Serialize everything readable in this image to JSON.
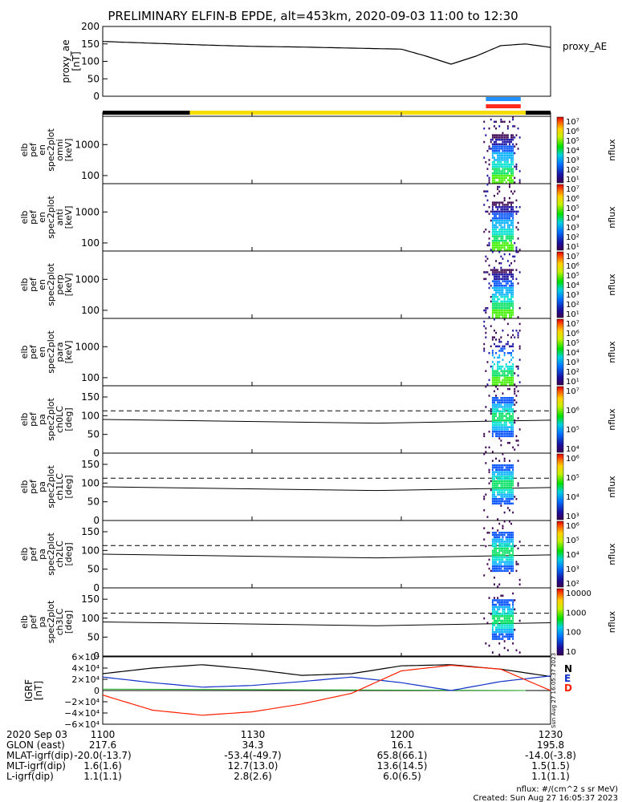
{
  "title": "PRELIMINARY ELFIN-B EPDE, alt=453km, 2020-09-03 11:00 to 12:30",
  "colors": {
    "sun_bar": "#f5dd00",
    "shadow_bar": "#000000",
    "science_blue": "#1e90ff",
    "science_red": "#ff2a1a",
    "line_black": "#000000",
    "grf_n": "#000000",
    "grf_e": "#1030c8",
    "grf_d": "#ff2000",
    "grf_green": "#22b022"
  },
  "panels": {
    "proxy": {
      "ylabel": [
        "proxy_ae",
        "[nT]"
      ],
      "ticks": [
        "200",
        "150",
        "100",
        "50",
        "0"
      ],
      "legend": "proxy_AE"
    },
    "omni": {
      "ylabel": [
        "elb",
        "pef",
        "en",
        "spec2plot",
        "omni",
        "[keV]"
      ],
      "ticks": [
        "1000",
        "100"
      ]
    },
    "anti": {
      "ylabel": [
        "elb",
        "pef",
        "en",
        "spec2plot",
        "anti",
        "[keV]"
      ],
      "ticks": [
        "1000",
        "100"
      ]
    },
    "perp": {
      "ylabel": [
        "elb",
        "pef",
        "en",
        "spec2plot",
        "perp",
        "[keV]"
      ],
      "ticks": [
        "1000",
        "100"
      ]
    },
    "para": {
      "ylabel": [
        "elb",
        "pef",
        "en",
        "spec2plot",
        "para",
        "[keV]"
      ],
      "ticks": [
        "1000",
        "100"
      ]
    },
    "ch0": {
      "ylabel": [
        "elb",
        "pef",
        "pa",
        "spec2plot",
        "ch0LC",
        "[deg]"
      ],
      "ticks": [
        "150",
        "100",
        "50",
        "0"
      ]
    },
    "ch1": {
      "ylabel": [
        "elb",
        "pef",
        "pa",
        "spec2plot",
        "ch1LC",
        "[deg]"
      ],
      "ticks": [
        "150",
        "100",
        "50",
        "0"
      ]
    },
    "ch2": {
      "ylabel": [
        "elb",
        "pef",
        "pa",
        "spec2plot",
        "ch2LC",
        "[deg]"
      ],
      "ticks": [
        "150",
        "100",
        "50",
        "0"
      ]
    },
    "ch3": {
      "ylabel": [
        "elb",
        "pef",
        "pa",
        "spec2plot",
        "ch3LC",
        "[deg]"
      ],
      "ticks": [
        "150",
        "100",
        "50",
        "0"
      ]
    },
    "igrf": {
      "ylabel": [
        "IGRF",
        "[nT]"
      ],
      "ticks": [
        "6×10⁴",
        "4×10⁴",
        "2×10⁴",
        "0",
        "−2×10⁴",
        "−4×10⁴",
        "−6×10⁴"
      ],
      "labels": [
        "N",
        "E",
        "D"
      ],
      "side_stamp": "Sun Aug 27 16:05:37 2023"
    }
  },
  "colorbars": {
    "unit": "nflux",
    "omni": [
      "10⁷",
      "10⁶",
      "10⁵",
      "10⁴",
      "10³",
      "10²",
      "10¹"
    ],
    "anti": [
      "10⁷",
      "10⁶",
      "10⁵",
      "10⁴",
      "10³",
      "10²",
      "10¹"
    ],
    "perp": [
      "10⁷",
      "10⁶",
      "10⁵",
      "10⁴",
      "10³",
      "10²",
      "10¹"
    ],
    "para": [
      "10⁷",
      "10⁶",
      "10⁵",
      "10⁴",
      "10³",
      "10²",
      "10¹"
    ],
    "ch0": [
      "10⁷",
      "10⁶",
      "10⁵",
      "10⁴"
    ],
    "ch1": [
      "10⁶",
      "10⁵",
      "10⁴",
      "10³"
    ],
    "ch2": [
      "10⁶",
      "10⁵",
      "10⁴",
      "10³",
      "10²"
    ],
    "ch3": [
      "10000",
      "1000",
      "100",
      "10"
    ]
  },
  "orbit_table": {
    "row_labels": [
      "2020 Sep 03",
      "GLON (east)",
      "MLAT-igrf(dip)",
      "MLT-igrf(dip)",
      "L-igrf(dip)"
    ],
    "columns": [
      [
        "1100",
        "217.6",
        "-20.0(-13.7)",
        "1.6(1.6)",
        "1.1(1.1)"
      ],
      [
        "1130",
        "34.3",
        "-53.4(-49.7)",
        "12.7(13.0)",
        "2.8(2.6)"
      ],
      [
        "1200",
        "16.1",
        "65.8(66.1)",
        "13.6(14.5)",
        "6.0(6.5)"
      ],
      [
        "1230",
        "195.8",
        "-14.0(-3.8)",
        "1.5(1.5)",
        "1.1(1.1)"
      ]
    ]
  },
  "footer": {
    "units": "nflux: #/(cm^2 s sr MeV)",
    "created": "Created: Sun Aug 27 16:05:37 2023"
  },
  "chart_data": {
    "type": "line",
    "time_range": [
      "2020-09-03 11:00",
      "2020-09-03 12:30"
    ],
    "x_ticks": [
      "1100",
      "1130",
      "1200",
      "1230"
    ],
    "proxy_ae": {
      "ylim": [
        0,
        200
      ],
      "x_min": [
        0,
        10,
        20,
        30,
        40,
        50,
        60,
        65,
        70,
        75,
        80,
        85,
        90
      ],
      "values": [
        157,
        152,
        147,
        143,
        141,
        138,
        135,
        115,
        92,
        115,
        145,
        150,
        140
      ]
    },
    "sun_shadow": {
      "shadow_min": [
        [
          0,
          17.5
        ],
        [
          85,
          90
        ]
      ],
      "sun_min": [
        [
          17.5,
          85
        ]
      ]
    },
    "science_zone_min": [
      77,
      84
    ],
    "spectrogram_burst_min": [
      76.5,
      84
    ],
    "pitch_angle_reference_deg": {
      "dashed": 113,
      "solid_start": 90,
      "solid_end": 88
    },
    "igrf": {
      "ylim": [
        -60000,
        60000
      ],
      "series": [
        {
          "name": "N",
          "x_min": [
            0,
            10,
            20,
            30,
            40,
            50,
            60,
            70,
            80,
            90
          ],
          "values": [
            30000,
            40000,
            46000,
            38000,
            27000,
            30000,
            44000,
            46000,
            38000,
            25000
          ]
        },
        {
          "name": "E",
          "x_min": [
            0,
            10,
            20,
            30,
            40,
            50,
            60,
            70,
            80,
            90
          ],
          "values": [
            24000,
            14000,
            6000,
            9000,
            16000,
            24000,
            14000,
            0,
            16000,
            26000
          ]
        },
        {
          "name": "D",
          "x_min": [
            0,
            10,
            20,
            30,
            40,
            50,
            60,
            70,
            80,
            90
          ],
          "values": [
            -8000,
            -35000,
            -44000,
            -38000,
            -24000,
            -5000,
            35000,
            45000,
            38000,
            0
          ]
        }
      ]
    }
  }
}
